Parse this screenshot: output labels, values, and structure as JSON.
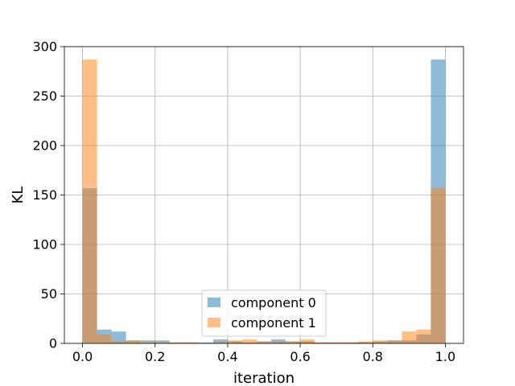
{
  "chart_data": {
    "type": "histogram",
    "title": "",
    "xlabel": "iteration",
    "ylabel": "KL",
    "xlim": [
      -0.05,
      1.05
    ],
    "ylim": [
      0,
      300
    ],
    "x_ticks": [
      0.0,
      0.2,
      0.4,
      0.6,
      0.8,
      1.0
    ],
    "x_tick_labels": [
      "0.0",
      "0.2",
      "0.4",
      "0.6",
      "0.8",
      "1.0"
    ],
    "y_ticks": [
      0,
      50,
      100,
      150,
      200,
      250,
      300
    ],
    "y_tick_labels": [
      "0",
      "50",
      "100",
      "150",
      "200",
      "250",
      "300"
    ],
    "grid": true,
    "legend_position": "bottom-center",
    "bin_edges": [
      0.0,
      0.04,
      0.08,
      0.12,
      0.16,
      0.2,
      0.24,
      0.28,
      0.32,
      0.36,
      0.4,
      0.44,
      0.48,
      0.52,
      0.56,
      0.6,
      0.64,
      0.68,
      0.72,
      0.76,
      0.8,
      0.84,
      0.88,
      0.92,
      0.96,
      1.0
    ],
    "series": [
      {
        "name": "component 0",
        "color": "#1f77b4",
        "opacity": 0.5,
        "values": [
          157,
          14,
          12,
          3,
          3,
          3,
          1,
          1,
          1,
          4,
          2,
          1,
          2,
          4,
          2,
          2,
          1,
          1,
          1,
          1,
          2,
          3,
          3,
          9,
          287
        ]
      },
      {
        "name": "component 1",
        "color": "#ff7f0e",
        "opacity": 0.5,
        "values": [
          287,
          9,
          2,
          3,
          1,
          1,
          1,
          1,
          0,
          2,
          3,
          4,
          2,
          2,
          2,
          4,
          1,
          1,
          1,
          2,
          3,
          3,
          12,
          14,
          157
        ]
      }
    ]
  }
}
